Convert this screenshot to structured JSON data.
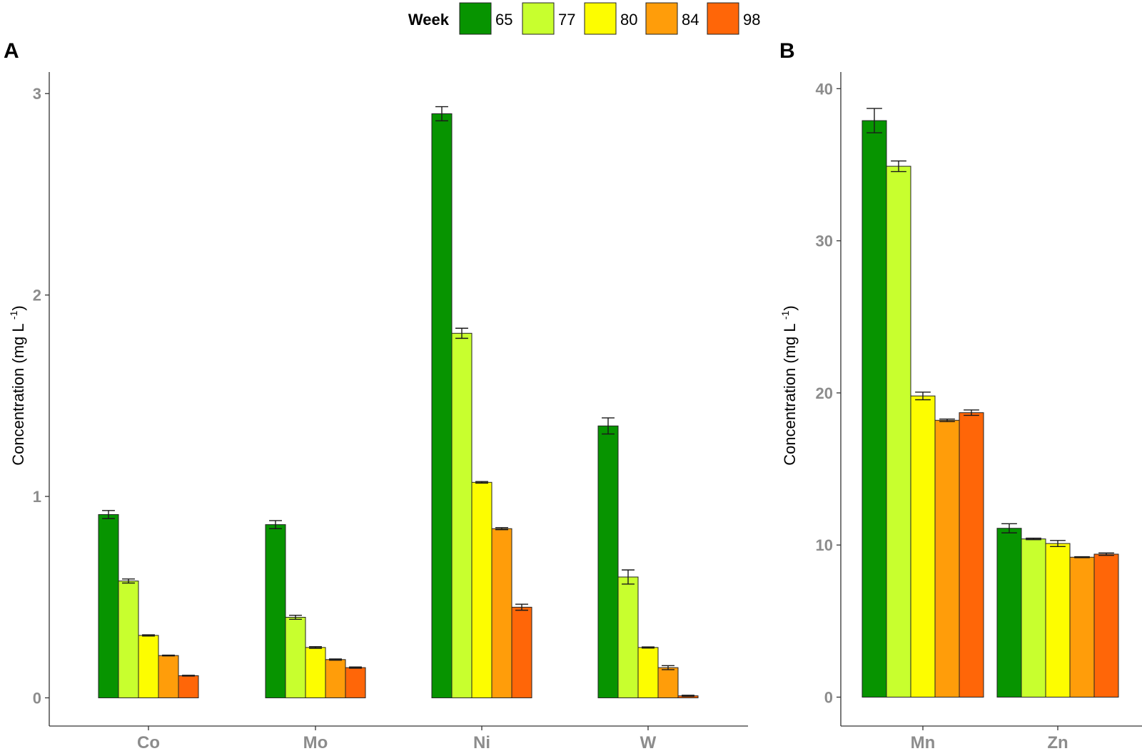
{
  "legend": {
    "title": "Week",
    "entries": [
      {
        "label": "65",
        "color": "#079400"
      },
      {
        "label": "77",
        "color": "#c8ff2e"
      },
      {
        "label": "80",
        "color": "#fdfd00"
      },
      {
        "label": "84",
        "color": "#ff9d0a"
      },
      {
        "label": "98",
        "color": "#ff6608"
      }
    ]
  },
  "chart_data": [
    {
      "panel": "A",
      "type": "bar",
      "ylabel": "Concentration (mg L",
      "ylabel_sup": "-1",
      "ylabel_close": ")",
      "ylim": [
        -0.14,
        3.1
      ],
      "yticks": [
        0,
        1,
        2,
        3
      ],
      "categories": [
        "Co",
        "Mo",
        "Ni",
        "W"
      ],
      "series": [
        {
          "name": "65",
          "values": [
            0.91,
            0.86,
            2.9,
            1.35
          ],
          "errors": [
            0.02,
            0.02,
            0.035,
            0.04
          ]
        },
        {
          "name": "77",
          "values": [
            0.58,
            0.4,
            1.81,
            0.6
          ],
          "errors": [
            0.01,
            0.01,
            0.025,
            0.035
          ]
        },
        {
          "name": "80",
          "values": [
            0.31,
            0.25,
            1.07,
            0.25
          ],
          "errors": [
            0.003,
            0.004,
            0.004,
            0.003
          ]
        },
        {
          "name": "84",
          "values": [
            0.21,
            0.19,
            0.84,
            0.15
          ],
          "errors": [
            0.002,
            0.003,
            0.005,
            0.01
          ]
        },
        {
          "name": "98",
          "values": [
            0.11,
            0.15,
            0.45,
            0.01
          ],
          "errors": [
            0.002,
            0.003,
            0.015,
            0.003
          ]
        }
      ]
    },
    {
      "panel": "B",
      "type": "bar",
      "ylabel": "Concentration (mg L",
      "ylabel_sup": "-1",
      "ylabel_close": ")",
      "ylim": [
        -1.9,
        41
      ],
      "yticks": [
        0,
        10,
        20,
        30,
        40
      ],
      "categories": [
        "Mn",
        "Zn"
      ],
      "series": [
        {
          "name": "65",
          "values": [
            37.9,
            11.1
          ],
          "errors": [
            0.8,
            0.3
          ]
        },
        {
          "name": "77",
          "values": [
            34.9,
            10.4
          ],
          "errors": [
            0.35,
            0.05
          ]
        },
        {
          "name": "80",
          "values": [
            19.8,
            10.1
          ],
          "errors": [
            0.25,
            0.2
          ]
        },
        {
          "name": "84",
          "values": [
            18.2,
            9.2
          ],
          "errors": [
            0.08,
            0.03
          ]
        },
        {
          "name": "98",
          "values": [
            18.7,
            9.4
          ],
          "errors": [
            0.18,
            0.08
          ]
        }
      ]
    }
  ]
}
